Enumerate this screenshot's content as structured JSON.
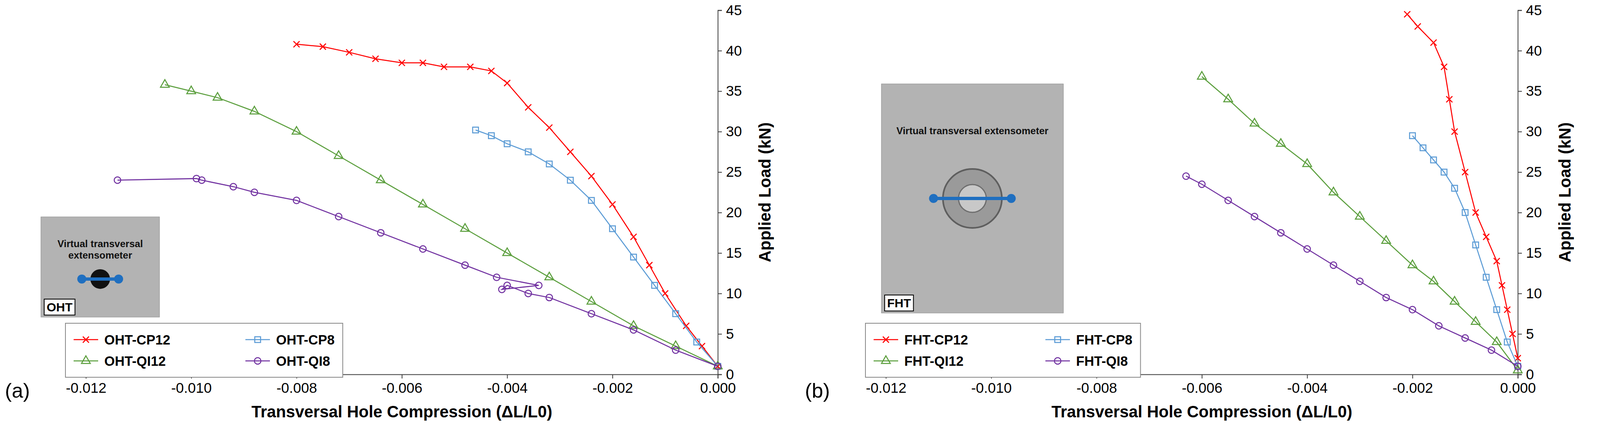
{
  "chart_data": [
    {
      "type": "line",
      "panel_label": "(a)",
      "xlabel": "Transversal Hole Compression (ΔL/L0)",
      "ylabel": "Applied Load (kN)",
      "annotations": [
        "Virtual transversal extensometer",
        "OHT"
      ],
      "xlim": [
        -0.012,
        0
      ],
      "ylim": [
        0,
        45
      ],
      "xticks": [
        -0.012,
        {
          "value": -0.01,
          "label": "-0.010"
        },
        -0.008,
        -0.006,
        -0.004,
        -0.002,
        {
          "value": 0,
          "label": "0.000"
        }
      ],
      "yticks": [
        0,
        5,
        10,
        15,
        20,
        25,
        30,
        35,
        40,
        45
      ],
      "grid": false,
      "legend": "lower left",
      "series": [
        {
          "name": "OHT-CP12",
          "color": "#ff0000",
          "marker": "x",
          "x": [
            0,
            -0.0003,
            -0.0006,
            -0.001,
            -0.0013,
            -0.0016,
            -0.002,
            -0.0024,
            -0.0028,
            -0.0032,
            -0.0036,
            -0.004,
            -0.0043,
            -0.0047,
            -0.0052,
            -0.0056,
            -0.006,
            -0.0065,
            -0.007,
            -0.0075,
            -0.008
          ],
          "values": [
            1,
            3.5,
            6,
            10,
            13.5,
            17,
            21,
            24.5,
            27.5,
            30.5,
            33,
            36,
            37.5,
            38,
            38,
            38.5,
            38.5,
            39,
            39.8,
            40.5,
            40.8
          ]
        },
        {
          "name": "OHT-CP8",
          "color": "#5b9bd5",
          "marker": "square",
          "x": [
            0,
            -0.0004,
            -0.0008,
            -0.0012,
            -0.0016,
            -0.002,
            -0.0024,
            -0.0028,
            -0.0032,
            -0.0036,
            -0.004,
            -0.0043,
            -0.0046
          ],
          "values": [
            1,
            4,
            7.5,
            11,
            14.5,
            18,
            21.5,
            24,
            26,
            27.5,
            28.5,
            29.5,
            30.2
          ]
        },
        {
          "name": "OHT-QI12",
          "color": "#5a9e3c",
          "marker": "triangle",
          "x": [
            0,
            -0.0008,
            -0.0016,
            -0.0024,
            -0.0032,
            -0.004,
            -0.0048,
            -0.0056,
            -0.0064,
            -0.0072,
            -0.008,
            -0.0088,
            -0.0095,
            -0.01,
            -0.0105
          ],
          "values": [
            1,
            3.5,
            6,
            9,
            12,
            15,
            18,
            21,
            24,
            27,
            30,
            32.5,
            34.2,
            35,
            35.8
          ]
        },
        {
          "name": "OHT-QI8",
          "color": "#7030a0",
          "marker": "circle",
          "x": [
            0,
            -0.0008,
            -0.0016,
            -0.0024,
            -0.0032,
            -0.0036,
            -0.004,
            -0.0041,
            -0.0034,
            -0.0042,
            -0.0048,
            -0.0056,
            -0.0064,
            -0.0072,
            -0.008,
            -0.0088,
            -0.0092,
            -0.0098,
            -0.0099,
            -0.0114
          ],
          "values": [
            1,
            3,
            5.5,
            7.5,
            9.5,
            10,
            11,
            10.5,
            11,
            12,
            13.5,
            15.5,
            17.5,
            19.5,
            21.5,
            22.5,
            23.2,
            24,
            24.2,
            24
          ]
        }
      ]
    },
    {
      "type": "line",
      "panel_label": "(b)",
      "xlabel": "Transversal Hole Compression (ΔL/L0)",
      "ylabel": "Applied Load (kN)",
      "annotations": [
        "Virtual transversal extensometer",
        "FHT"
      ],
      "xlim": [
        -0.012,
        0
      ],
      "ylim": [
        0,
        45
      ],
      "xticks": [
        -0.012,
        {
          "value": -0.01,
          "label": "-0.010"
        },
        -0.008,
        -0.006,
        -0.004,
        -0.002,
        {
          "value": 0,
          "label": "0.000"
        }
      ],
      "yticks": [
        0,
        5,
        10,
        15,
        20,
        25,
        30,
        35,
        40,
        45
      ],
      "grid": false,
      "legend": "lower left",
      "series": [
        {
          "name": "FHT-CP12",
          "color": "#ff0000",
          "marker": "x",
          "x": [
            0,
            -0.0001,
            -0.0002,
            -0.0003,
            -0.0004,
            -0.0006,
            -0.0008,
            -0.001,
            -0.0012,
            -0.0013,
            -0.0014,
            -0.0016,
            -0.0019,
            -0.0021
          ],
          "values": [
            2,
            5,
            8,
            11,
            14,
            17,
            20,
            25,
            30,
            34,
            38,
            41,
            43,
            44.5
          ]
        },
        {
          "name": "FHT-CP8",
          "color": "#5b9bd5",
          "marker": "square",
          "x": [
            0,
            -0.0002,
            -0.0004,
            -0.0006,
            -0.0008,
            -0.001,
            -0.0012,
            -0.0014,
            -0.0016,
            -0.0018,
            -0.002
          ],
          "values": [
            1,
            4,
            8,
            12,
            16,
            20,
            23,
            25,
            26.5,
            28,
            29.5
          ]
        },
        {
          "name": "FHT-QI12",
          "color": "#5a9e3c",
          "marker": "triangle",
          "x": [
            0,
            -0.0004,
            -0.0008,
            -0.0012,
            -0.0016,
            -0.002,
            -0.0025,
            -0.003,
            -0.0035,
            -0.004,
            -0.0045,
            -0.005,
            -0.0055,
            -0.006
          ],
          "values": [
            0.5,
            4,
            6.5,
            9,
            11.5,
            13.5,
            16.5,
            19.5,
            22.5,
            26,
            28.5,
            31,
            34,
            36.8
          ]
        },
        {
          "name": "FHT-QI8",
          "color": "#7030a0",
          "marker": "circle",
          "x": [
            0,
            -0.0005,
            -0.001,
            -0.0015,
            -0.002,
            -0.0025,
            -0.003,
            -0.0035,
            -0.004,
            -0.0045,
            -0.005,
            -0.0055,
            -0.006,
            -0.0063
          ],
          "values": [
            1,
            3,
            4.5,
            6,
            8,
            9.5,
            11.5,
            13.5,
            15.5,
            17.5,
            19.5,
            21.5,
            23.5,
            24.5
          ]
        }
      ]
    }
  ]
}
